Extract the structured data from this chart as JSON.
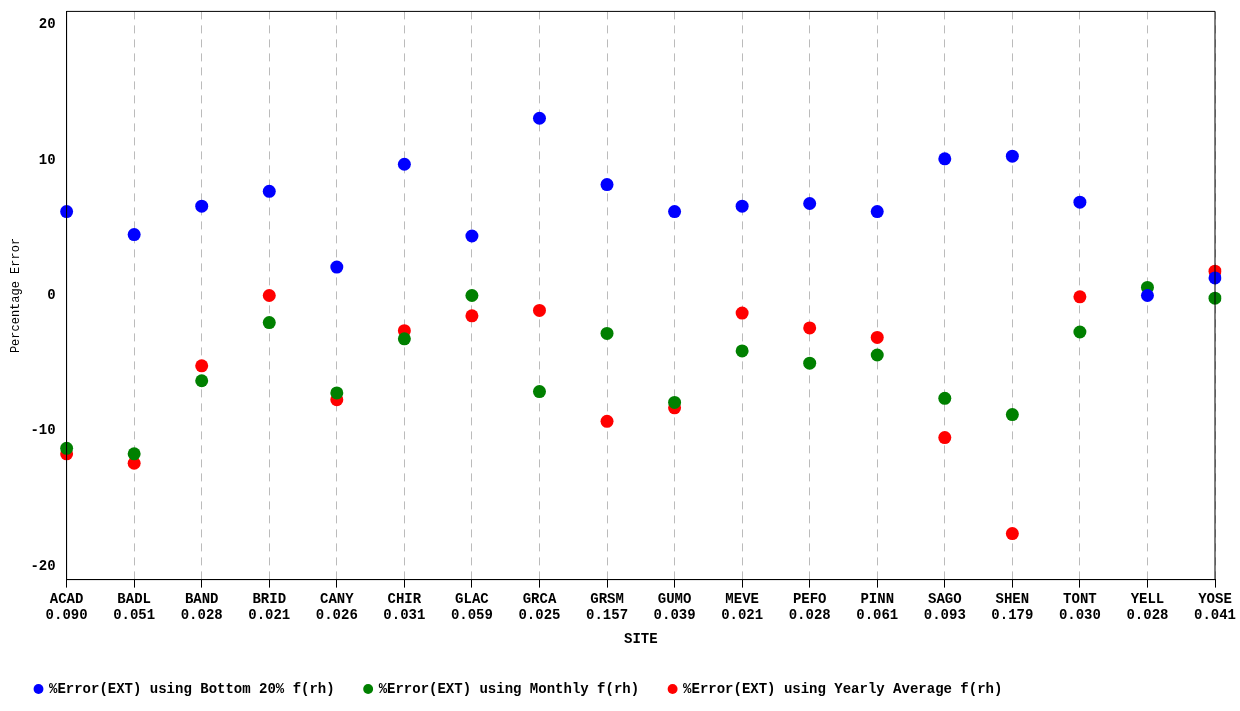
{
  "chart_data": {
    "type": "scatter",
    "xlabel": "SITE",
    "ylabel": "Percentage Error",
    "categories": [
      "ACAD\n0.090",
      "BADL\n0.051",
      "BAND\n0.028",
      "BRID\n0.021",
      "CANY\n0.026",
      "CHIR\n0.031",
      "GLAC\n0.059",
      "GRCA\n0.025",
      "GRSM\n0.157",
      "GUMO\n0.039",
      "MEVE\n0.021",
      "PEFO\n0.028",
      "PINN\n0.061",
      "SAGO\n0.093",
      "SHEN\n0.179",
      "TONT\n0.030",
      "YELL\n0.028",
      "YOSE\n0.041"
    ],
    "series": [
      {
        "name": "%Error(EXT) using Yearly Average f(rh)",
        "color": "#ff0000",
        "values": [
          -11.7,
          -12.4,
          -5.2,
          0,
          -7.7,
          -2.6,
          -1.5,
          -1.1,
          -9.3,
          -8.3,
          -1.3,
          -2.4,
          -3.1,
          -10.5,
          -17.6,
          -0.1,
          null,
          1.8
        ]
      },
      {
        "name": "%Error(EXT) using Monthly f(rh)",
        "color": "#008000",
        "values": [
          -11.3,
          -11.7,
          -6.3,
          -2.0,
          -7.2,
          -3.2,
          0,
          -7.1,
          -2.8,
          -7.9,
          -4.1,
          -5.0,
          -4.4,
          -7.6,
          -8.8,
          -2.7,
          0.6,
          -0.2
        ]
      },
      {
        "name": "%Error(EXT) using Bottom 20% f(rh)",
        "color": "#0000ff",
        "values": [
          6.2,
          4.5,
          6.6,
          7.7,
          2.1,
          9.7,
          4.4,
          13.1,
          8.2,
          6.2,
          6.6,
          6.8,
          6.2,
          10.1,
          10.3,
          6.9,
          0,
          1.3
        ]
      }
    ],
    "ylim": [
      -21,
      21
    ],
    "yticks": [
      -20,
      -10,
      0,
      10,
      20
    ],
    "grid": "x",
    "line_style": "dashed",
    "marker": "circle",
    "legend": "bottom"
  }
}
